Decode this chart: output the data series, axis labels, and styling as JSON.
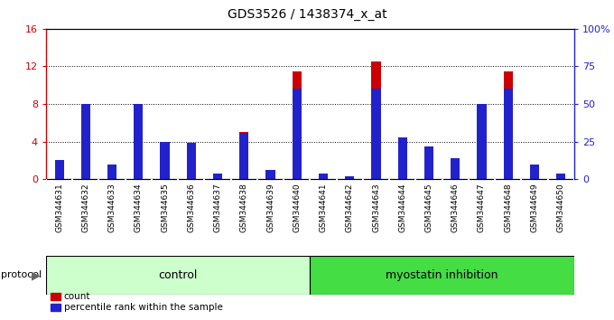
{
  "title": "GDS3526 / 1438374_x_at",
  "samples": [
    "GSM344631",
    "GSM344632",
    "GSM344633",
    "GSM344634",
    "GSM344635",
    "GSM344636",
    "GSM344637",
    "GSM344638",
    "GSM344639",
    "GSM344640",
    "GSM344641",
    "GSM344642",
    "GSM344643",
    "GSM344644",
    "GSM344645",
    "GSM344646",
    "GSM344647",
    "GSM344648",
    "GSM344649",
    "GSM344650"
  ],
  "count_values": [
    0.2,
    5.0,
    1.5,
    7.2,
    3.5,
    3.3,
    0.15,
    5.0,
    0.5,
    11.5,
    0.15,
    0.2,
    12.5,
    3.5,
    2.8,
    1.5,
    6.0,
    11.5,
    1.5,
    0.2
  ],
  "percentile_values": [
    13,
    50,
    10,
    50,
    25,
    24,
    4,
    31,
    6,
    60,
    4,
    2,
    60,
    28,
    22,
    14,
    50,
    60,
    10,
    4
  ],
  "ylim_left": [
    0,
    16
  ],
  "ylim_right": [
    0,
    100
  ],
  "yticks_left": [
    0,
    4,
    8,
    12,
    16
  ],
  "ytick_labels_left": [
    "0",
    "4",
    "8",
    "12",
    "16"
  ],
  "yticks_right": [
    0,
    25,
    50,
    75,
    100
  ],
  "ytick_labels_right": [
    "0",
    "25",
    "50",
    "75",
    "100%"
  ],
  "count_color": "#cc0000",
  "percentile_color": "#2222cc",
  "control_bg": "#ccffcc",
  "myostatin_bg": "#44dd44",
  "label_bg": "#cccccc",
  "bar_width": 0.35,
  "legend_count": "count",
  "legend_percentile": "percentile rank within the sample",
  "protocol_label": "protocol",
  "control_label": "control",
  "myostatin_label": "myostatin inhibition",
  "n_control": 10,
  "n_myostatin": 10
}
